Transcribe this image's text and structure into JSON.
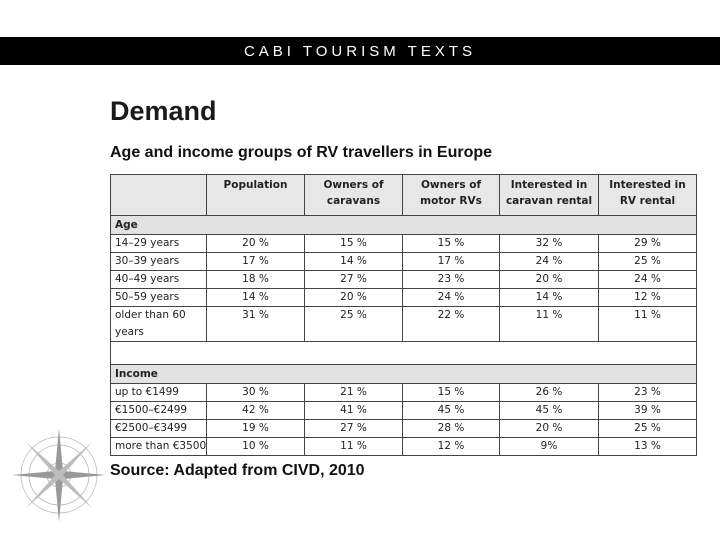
{
  "header": {
    "banner": "CABI TOURISM TEXTS"
  },
  "slide": {
    "title": "Demand",
    "subtitle": "Age and income groups of RV travellers in Europe",
    "source": "Source: Adapted from CIVD, 2010"
  },
  "table": {
    "columns": [
      "",
      "Population",
      "Owners of caravans",
      "Owners of motor RVs",
      "Interested in caravan rental",
      "Interested in RV rental"
    ],
    "sections": [
      {
        "label": "Age",
        "rows": [
          {
            "label": "14–29 years",
            "values": [
              "20 %",
              "15 %",
              "15 %",
              "32 %",
              "29 %"
            ]
          },
          {
            "label": "30–39 years",
            "values": [
              "17 %",
              "14 %",
              "17 %",
              "24 %",
              "25 %"
            ]
          },
          {
            "label": "40–49 years",
            "values": [
              "18 %",
              "27 %",
              "23 %",
              "20 %",
              "24 %"
            ]
          },
          {
            "label": "50–59 years",
            "values": [
              "14 %",
              "20 %",
              "24 %",
              "14 %",
              "12 %"
            ]
          },
          {
            "label": "older than 60 years",
            "values": [
              "31 %",
              "25 %",
              "22 %",
              "11 %",
              "11 %"
            ]
          }
        ]
      },
      {
        "label": "Income",
        "rows": [
          {
            "label": "up to €1499",
            "values": [
              "30 %",
              "21 %",
              "15 %",
              "26 %",
              "23 %"
            ]
          },
          {
            "label": "€1500–€2499",
            "values": [
              "42 %",
              "41 %",
              "45 %",
              "45 %",
              "39 %"
            ]
          },
          {
            "label": "€2500–€3499",
            "values": [
              "19 %",
              "27 %",
              "28 %",
              "20 %",
              "25 %"
            ]
          },
          {
            "label": "more than €3500",
            "values": [
              "10 %",
              "11 %",
              "12 %",
              "9%",
              "13 %"
            ]
          }
        ]
      }
    ]
  },
  "decor": {
    "compass_icon": "compass-rose-icon"
  }
}
